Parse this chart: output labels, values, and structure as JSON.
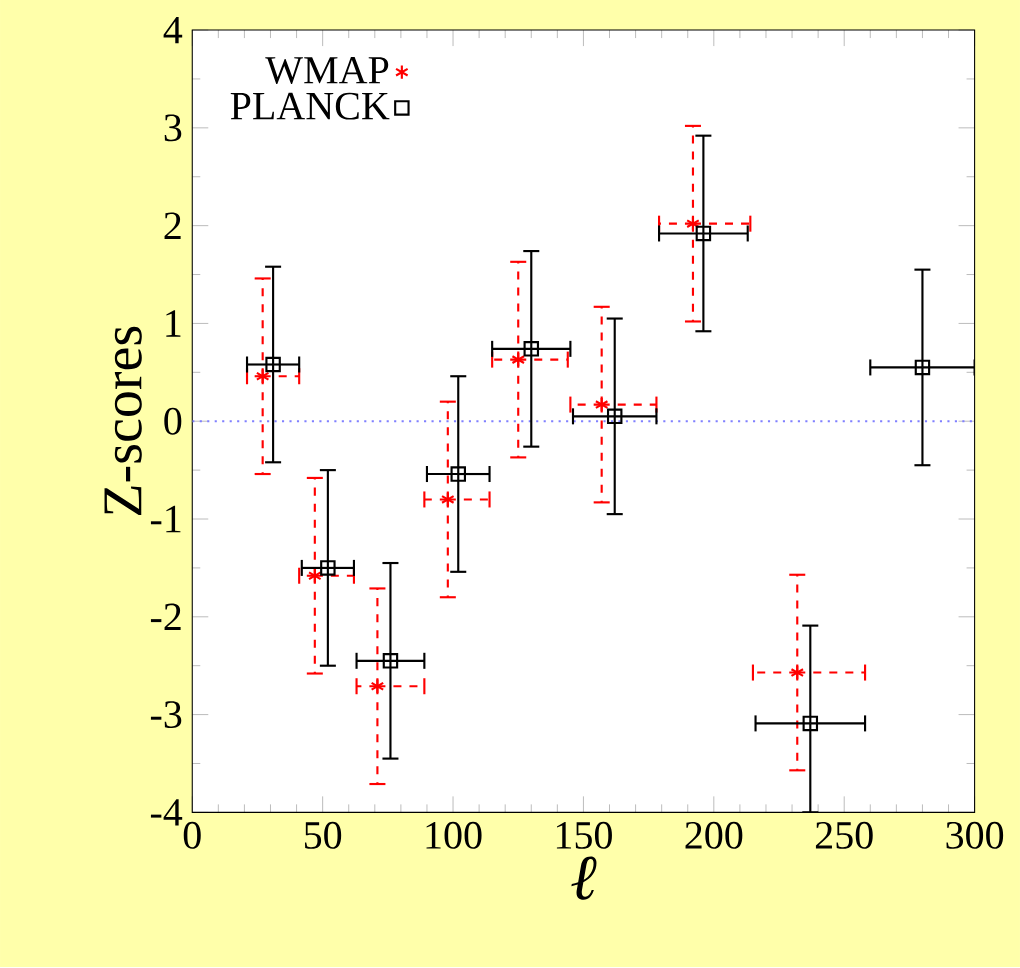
{
  "chart_data": {
    "type": "scatter",
    "xlabel": "ℓ",
    "ylabel": "Z-scores",
    "xlim": [
      0,
      300
    ],
    "ylim": [
      -4,
      4
    ],
    "xticks": [
      0,
      50,
      100,
      150,
      200,
      250,
      300
    ],
    "yticks": [
      -4,
      -3,
      -2,
      -1,
      0,
      1,
      2,
      3,
      4
    ],
    "legend": "top left",
    "ref_lines": [
      {
        "axis": "y",
        "value": 0,
        "color": "#8080ff",
        "line_style": "dotted"
      }
    ],
    "series": [
      {
        "name": "WMAP",
        "color": "#ff0000",
        "marker": "cross",
        "line_style": "dashed",
        "x": [
          27,
          47,
          71,
          98,
          125,
          157,
          192,
          232
        ],
        "values": [
          0.46,
          -1.58,
          -2.71,
          -0.8,
          0.63,
          0.17,
          2.02,
          -2.57
        ],
        "errors": [
          1,
          1,
          1,
          1,
          1,
          1,
          1,
          1
        ],
        "xerrors": [
          [
            21,
            41
          ],
          [
            41,
            62
          ],
          [
            63,
            89
          ],
          [
            89,
            114
          ],
          [
            115,
            144
          ],
          [
            145,
            178
          ],
          [
            179,
            214
          ],
          [
            215,
            258
          ]
        ]
      },
      {
        "name": "PLANCK",
        "color": "#000000",
        "marker": "square",
        "line_style": "solid",
        "x": [
          31,
          52,
          76,
          102,
          130,
          162,
          196,
          237,
          280
        ],
        "values": [
          0.58,
          -1.5,
          -2.45,
          -0.54,
          0.74,
          0.05,
          1.92,
          -3.09,
          0.55
        ],
        "errors": [
          1,
          1,
          1,
          1,
          1,
          1,
          1,
          [
            -4,
            -2.09
          ],
          1
        ],
        "xerrors": [
          10,
          10,
          13,
          12,
          15,
          16,
          17,
          21,
          20
        ]
      }
    ]
  }
}
